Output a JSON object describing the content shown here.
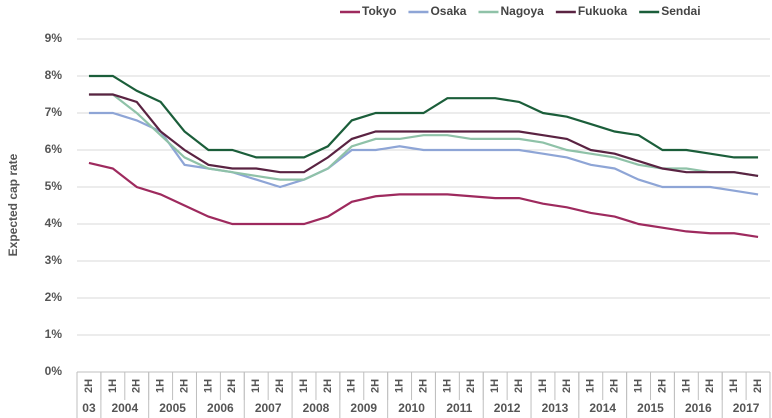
{
  "chart_data": {
    "type": "line",
    "y_axis_label": "Expected cap rate",
    "categories": [
      "2H",
      "1H",
      "2H",
      "1H",
      "2H",
      "1H",
      "2H",
      "1H",
      "2H",
      "1H",
      "2H",
      "1H",
      "2H",
      "1H",
      "2H",
      "1H",
      "2H",
      "1H",
      "2H",
      "1H",
      "2H",
      "1H",
      "2H",
      "1H",
      "2H",
      "1H",
      "2H",
      "1H",
      "2H"
    ],
    "category_groups": [
      {
        "label": "03",
        "span": 1
      },
      {
        "label": "2004",
        "span": 2
      },
      {
        "label": "2005",
        "span": 2
      },
      {
        "label": "2006",
        "span": 2
      },
      {
        "label": "2007",
        "span": 2
      },
      {
        "label": "2008",
        "span": 2
      },
      {
        "label": "2009",
        "span": 2
      },
      {
        "label": "2010",
        "span": 2
      },
      {
        "label": "2011",
        "span": 2
      },
      {
        "label": "2012",
        "span": 2
      },
      {
        "label": "2013",
        "span": 2
      },
      {
        "label": "2014",
        "span": 2
      },
      {
        "label": "2015",
        "span": 2
      },
      {
        "label": "2016",
        "span": 2
      },
      {
        "label": "2017",
        "span": 2
      }
    ],
    "series": [
      {
        "name": "Tokyo",
        "color": "#9e2a5e",
        "values": [
          5.65,
          5.5,
          5.0,
          4.8,
          4.5,
          4.2,
          4.0,
          4.0,
          4.0,
          4.0,
          4.2,
          4.6,
          4.75,
          4.8,
          4.8,
          4.8,
          4.75,
          4.7,
          4.7,
          4.55,
          4.45,
          4.3,
          4.2,
          4.0,
          3.9,
          3.8,
          3.75,
          3.75,
          3.65
        ]
      },
      {
        "name": "Osaka",
        "color": "#8ea5d6",
        "values": [
          7.0,
          7.0,
          6.8,
          6.5,
          5.6,
          5.5,
          5.4,
          5.2,
          5.0,
          5.2,
          5.5,
          6.0,
          6.0,
          6.1,
          6.0,
          6.0,
          6.0,
          6.0,
          6.0,
          5.9,
          5.8,
          5.6,
          5.5,
          5.2,
          5.0,
          5.0,
          5.0,
          4.9,
          4.8
        ]
      },
      {
        "name": "Nagoya",
        "color": "#8fc2a8",
        "values": [
          7.5,
          7.5,
          7.0,
          6.4,
          5.8,
          5.5,
          5.4,
          5.3,
          5.2,
          5.2,
          5.5,
          6.1,
          6.3,
          6.3,
          6.4,
          6.4,
          6.3,
          6.3,
          6.3,
          6.2,
          6.0,
          5.9,
          5.8,
          5.6,
          5.5,
          5.5,
          5.4,
          5.4,
          5.3
        ]
      },
      {
        "name": "Fukuoka",
        "color": "#5a2342",
        "values": [
          7.5,
          7.5,
          7.3,
          6.5,
          6.0,
          5.6,
          5.5,
          5.5,
          5.4,
          5.4,
          5.8,
          6.3,
          6.5,
          6.5,
          6.5,
          6.5,
          6.5,
          6.5,
          6.5,
          6.4,
          6.3,
          6.0,
          5.9,
          5.7,
          5.5,
          5.4,
          5.4,
          5.4,
          5.3
        ]
      },
      {
        "name": "Sendai",
        "color": "#1b5e3a",
        "values": [
          8.0,
          8.0,
          7.6,
          7.3,
          6.5,
          6.0,
          6.0,
          5.8,
          5.8,
          5.8,
          6.1,
          6.8,
          7.0,
          7.0,
          7.0,
          7.4,
          7.4,
          7.4,
          7.3,
          7.0,
          6.9,
          6.7,
          6.5,
          6.4,
          6.0,
          6.0,
          5.9,
          5.8,
          5.8
        ]
      }
    ],
    "ylim": [
      0,
      9
    ],
    "yticks": [
      {
        "value": 0,
        "label": "0%"
      },
      {
        "value": 1,
        "label": "1%"
      },
      {
        "value": 2,
        "label": "2%"
      },
      {
        "value": 3,
        "label": "3%"
      },
      {
        "value": 4,
        "label": "4%"
      },
      {
        "value": 5,
        "label": "5%"
      },
      {
        "value": 6,
        "label": "6%"
      },
      {
        "value": 7,
        "label": "7%"
      },
      {
        "value": 8,
        "label": "8%"
      },
      {
        "value": 9,
        "label": "9%"
      }
    ],
    "grid": true,
    "legend": "top-right"
  }
}
